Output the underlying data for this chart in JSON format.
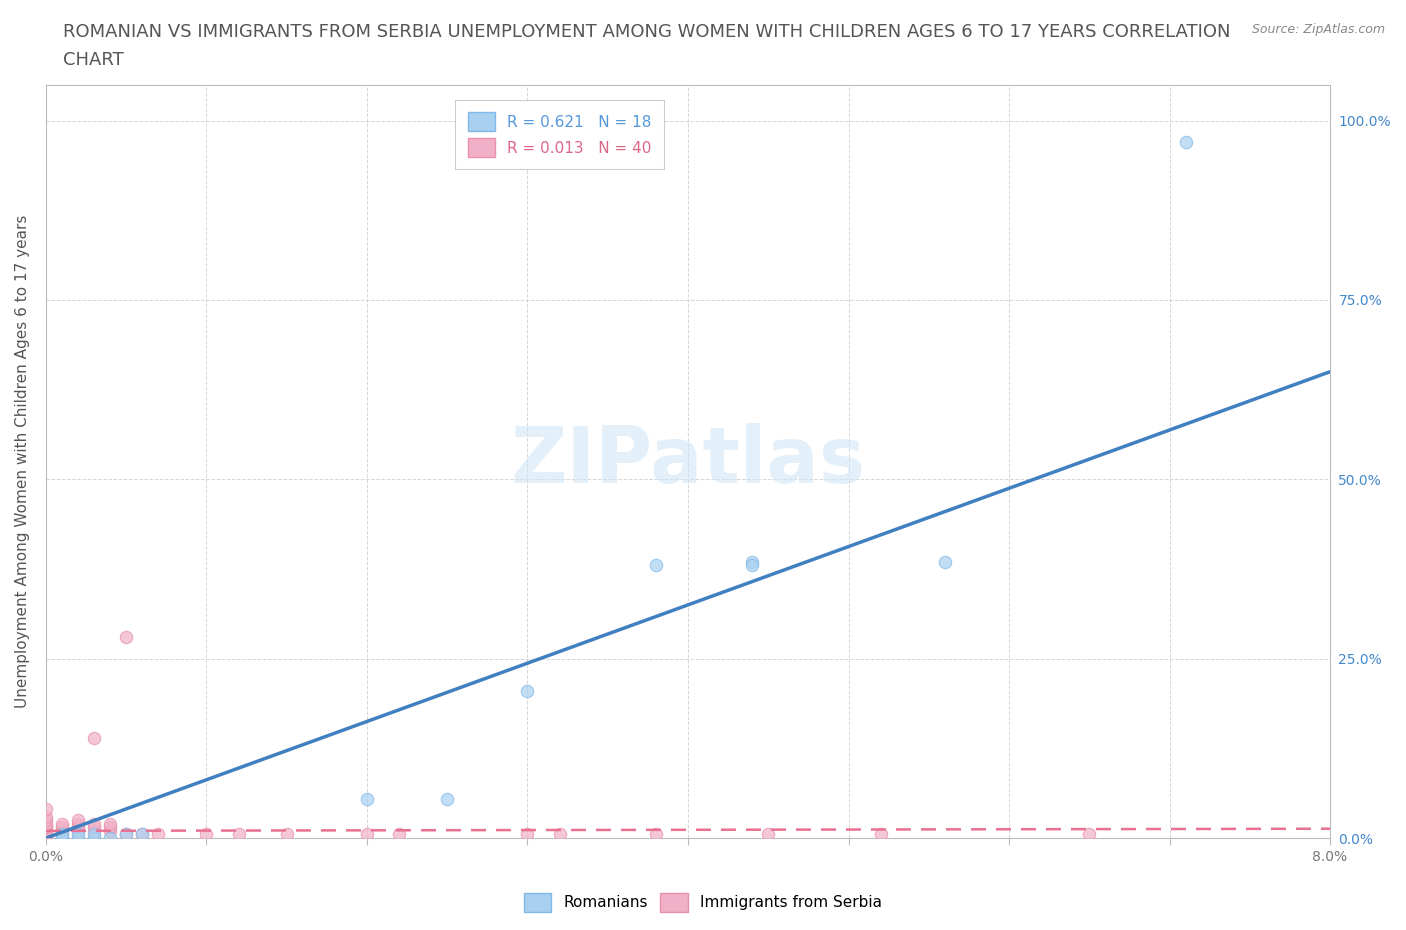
{
  "title_line1": "ROMANIAN VS IMMIGRANTS FROM SERBIA UNEMPLOYMENT AMONG WOMEN WITH CHILDREN AGES 6 TO 17 YEARS CORRELATION",
  "title_line2": "CHART",
  "source": "Source: ZipAtlas.com",
  "ylabel": "Unemployment Among Women with Children Ages 6 to 17 years",
  "xlim": [
    0.0,
    0.08
  ],
  "ylim": [
    0.0,
    1.05
  ],
  "xticks": [
    0.0,
    0.01,
    0.02,
    0.03,
    0.04,
    0.05,
    0.06,
    0.07,
    0.08
  ],
  "xticklabels": [
    "0.0%",
    "",
    "",
    "",
    "",
    "",
    "",
    "",
    "8.0%"
  ],
  "yticks": [
    0.0,
    0.25,
    0.5,
    0.75,
    1.0
  ],
  "yticklabels": [
    "0.0%",
    "25.0%",
    "50.0%",
    "75.0%",
    "100.0%"
  ],
  "romanian_R": 0.621,
  "romanian_N": 18,
  "serbian_R": 0.013,
  "serbian_N": 40,
  "romanian_color": "#a8d0f0",
  "romanian_edge_color": "#80b8e8",
  "serbian_color": "#f0b0c8",
  "serbian_edge_color": "#e890a8",
  "romanian_line_color": "#4080c0",
  "serbian_line_color": "#e87090",
  "watermark": "ZIPatlas",
  "romanian_x": [
    0.001,
    0.001,
    0.001,
    0.002,
    0.002,
    0.003,
    0.003,
    0.004,
    0.005,
    0.006,
    0.02,
    0.025,
    0.03,
    0.038,
    0.044,
    0.044,
    0.056,
    0.071
  ],
  "romanian_y": [
    0.0,
    0.0,
    0.005,
    0.0,
    0.005,
    0.0,
    0.005,
    0.0,
    0.005,
    0.005,
    0.055,
    0.055,
    0.205,
    0.38,
    0.385,
    0.38,
    0.385,
    0.97
  ],
  "serbian_x": [
    0.0,
    0.0,
    0.0,
    0.0,
    0.0,
    0.0,
    0.0,
    0.0,
    0.0,
    0.0,
    0.001,
    0.001,
    0.001,
    0.001,
    0.002,
    0.002,
    0.002,
    0.002,
    0.003,
    0.003,
    0.003,
    0.003,
    0.004,
    0.004,
    0.004,
    0.005,
    0.005,
    0.006,
    0.007,
    0.01,
    0.012,
    0.015,
    0.02,
    0.022,
    0.03,
    0.032,
    0.038,
    0.045,
    0.052,
    0.065
  ],
  "serbian_y": [
    0.0,
    0.005,
    0.008,
    0.01,
    0.015,
    0.018,
    0.02,
    0.025,
    0.03,
    0.04,
    0.005,
    0.01,
    0.015,
    0.02,
    0.01,
    0.015,
    0.02,
    0.025,
    0.01,
    0.015,
    0.02,
    0.14,
    0.01,
    0.015,
    0.02,
    0.005,
    0.28,
    0.005,
    0.005,
    0.005,
    0.005,
    0.005,
    0.005,
    0.005,
    0.005,
    0.005,
    0.005,
    0.005,
    0.005,
    0.005
  ],
  "bg_color": "#ffffff",
  "grid_color": "#cccccc",
  "title_fontsize": 13,
  "axis_label_fontsize": 11,
  "tick_fontsize": 10,
  "legend_fontsize": 11,
  "marker_size": 80
}
